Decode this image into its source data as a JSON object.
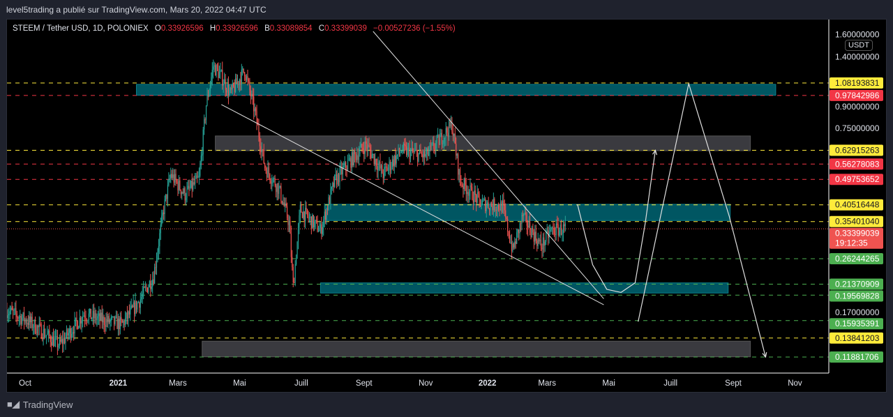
{
  "published": "level5trading a publié sur TradingView.com, Mars 20, 2022 04:47 UTC",
  "legend": {
    "symbol": "STEEM / Tether USD, 1D, POLONIEX",
    "o_label": "O",
    "o": "0.33926596",
    "h_label": "H",
    "h": "0.33926596",
    "b_label": "B",
    "b": "0.33089854",
    "c_label": "C",
    "c": "0.33399039",
    "change": "−0.00527236 (−1.55%)"
  },
  "currency": "USDT",
  "brand": "TradingView",
  "colors": {
    "up": "#26a69a",
    "down": "#ef5350",
    "yellow": "#ffeb3b",
    "red": "#f23645",
    "green": "#4caf50",
    "teal": "#005662",
    "gray": "#3a3a3f"
  },
  "chart_data": {
    "type": "candlestick",
    "title": "STEEM / Tether USD, 1D, POLONIEX",
    "yscale": "log",
    "ylim": [
      0.105,
      1.75
    ],
    "xlim_days_from_2020_10_01": [
      -18,
      778
    ],
    "x_ticks": [
      {
        "day": 0,
        "label": "Oct"
      },
      {
        "day": 92,
        "label": "2021"
      },
      {
        "day": 151,
        "label": "Mars"
      },
      {
        "day": 212,
        "label": "Mai"
      },
      {
        "day": 273,
        "label": "Juill"
      },
      {
        "day": 335,
        "label": "Sept"
      },
      {
        "day": 396,
        "label": "Nov"
      },
      {
        "day": 457,
        "label": "2022"
      },
      {
        "day": 516,
        "label": "Mars"
      },
      {
        "day": 577,
        "label": "Mai"
      },
      {
        "day": 638,
        "label": "Juill"
      },
      {
        "day": 700,
        "label": "Sept"
      },
      {
        "day": 761,
        "label": "Nov"
      }
    ],
    "y_ticks": [
      {
        "value": 1.6,
        "label": "1.60000000"
      },
      {
        "value": 1.4,
        "label": "1.40000000"
      },
      {
        "value": 0.9,
        "label": "0.90000000"
      },
      {
        "value": 0.75,
        "label": "0.75000000"
      },
      {
        "value": 0.17,
        "label": "0.17000000"
      }
    ],
    "price_path": [
      [
        -18,
        0.173
      ],
      [
        3,
        0.159
      ],
      [
        34,
        0.131
      ],
      [
        58,
        0.168
      ],
      [
        79,
        0.159
      ],
      [
        96,
        0.155
      ],
      [
        113,
        0.187
      ],
      [
        127,
        0.228
      ],
      [
        137,
        0.392
      ],
      [
        144,
        0.517
      ],
      [
        158,
        0.44
      ],
      [
        172,
        0.5
      ],
      [
        179,
        0.909
      ],
      [
        186,
        1.24
      ],
      [
        194,
        1.14
      ],
      [
        203,
        0.99
      ],
      [
        217,
        1.2
      ],
      [
        227,
        0.86
      ],
      [
        237,
        0.55
      ],
      [
        251,
        0.46
      ],
      [
        261,
        0.35
      ],
      [
        265,
        0.21
      ],
      [
        272,
        0.39
      ],
      [
        292,
        0.33
      ],
      [
        306,
        0.49
      ],
      [
        320,
        0.57
      ],
      [
        337,
        0.66
      ],
      [
        354,
        0.52
      ],
      [
        372,
        0.63
      ],
      [
        396,
        0.6
      ],
      [
        422,
        0.77
      ],
      [
        430,
        0.49
      ],
      [
        451,
        0.41
      ],
      [
        472,
        0.4
      ],
      [
        482,
        0.28
      ],
      [
        492,
        0.37
      ],
      [
        510,
        0.29
      ],
      [
        520,
        0.33
      ],
      [
        534,
        0.334
      ]
    ],
    "levels": [
      {
        "value": 1.08193831,
        "label": "1.08193831",
        "color": "yellow"
      },
      {
        "value": 0.97842986,
        "label": "0.97842986",
        "color": "red"
      },
      {
        "value": 0.62915263,
        "label": "0.62915263",
        "color": "yellow"
      },
      {
        "value": 0.56278083,
        "label": "0.56278083",
        "color": "red"
      },
      {
        "value": 0.49753652,
        "label": "0.49753652",
        "color": "red"
      },
      {
        "value": 0.40516448,
        "label": "0.40516448",
        "color": "yellow"
      },
      {
        "value": 0.3540104,
        "label": "0.35401040",
        "color": "yellow"
      },
      {
        "value": 0.26244265,
        "label": "0.26244265",
        "color": "green"
      },
      {
        "value": 0.21370909,
        "label": "0.21370909",
        "color": "green"
      },
      {
        "value": 0.19569828,
        "label": "0.19569828",
        "color": "green"
      },
      {
        "value": 0.15935391,
        "label": "0.15935391",
        "color": "green"
      },
      {
        "value": 0.13841203,
        "label": "0.13841203",
        "color": "yellow"
      },
      {
        "value": 0.11881706,
        "label": "0.11881706",
        "color": "green"
      }
    ],
    "last_price": {
      "value": 0.33399039,
      "label": "0.33399039",
      "countdown": "19:12:35"
    },
    "zones": [
      {
        "from_day": 110,
        "to_day": 742,
        "high": 1.07,
        "low": 0.98,
        "color": "teal"
      },
      {
        "from_day": 188,
        "to_day": 717,
        "high": 0.706,
        "low": 0.627,
        "color": "gray"
      },
      {
        "from_day": 297,
        "to_day": 697,
        "high": 0.407,
        "low": 0.357,
        "color": "teal"
      },
      {
        "from_day": 292,
        "to_day": 695,
        "high": 0.216,
        "low": 0.199,
        "color": "teal"
      },
      {
        "from_day": 175,
        "to_day": 717,
        "high": 0.135,
        "low": 0.119,
        "color": "gray"
      }
    ],
    "trendlines": [
      [
        [
          194,
          0.909
        ],
        [
          572,
          0.181
        ]
      ],
      [
        [
          344,
          1.64
        ],
        [
          572,
          0.19
        ]
      ]
    ],
    "projections": [
      [
        [
          546,
          0.407
        ],
        [
          561,
          0.25
        ],
        [
          575,
          0.205
        ],
        [
          589,
          0.2
        ],
        [
          603,
          0.216
        ],
        [
          613,
          0.349
        ],
        [
          623,
          0.629
        ]
      ],
      [
        [
          606,
          0.158
        ],
        [
          656,
          1.076
        ],
        [
          696,
          0.37
        ],
        [
          732,
          0.1188
        ]
      ]
    ]
  }
}
